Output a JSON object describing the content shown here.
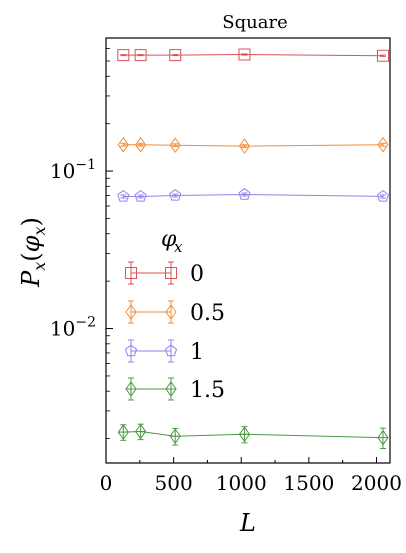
{
  "chart_data": {
    "type": "line",
    "title": "Square",
    "xlabel": "L",
    "ylabel": "P_x(φ_x)",
    "xlim": [
      0,
      2100
    ],
    "ylim": [
      0.0014,
      0.7
    ],
    "yscale": "log",
    "x_ticks": [
      0,
      500,
      1000,
      1500,
      2000
    ],
    "y_ticks": [
      {
        "value": 0.1,
        "base": "10",
        "exp": "−1"
      },
      {
        "value": 0.01,
        "base": "10",
        "exp": "−2"
      }
    ],
    "grid": false,
    "legend_title": "φ_x",
    "legend_position": "center-left",
    "x": [
      128,
      256,
      512,
      1024,
      2048
    ],
    "series": [
      {
        "name": "0",
        "color": "#d9535a",
        "marker": "square",
        "values": [
          0.545,
          0.545,
          0.545,
          0.55,
          0.54
        ],
        "errors": [
          0.004,
          0.004,
          0.004,
          0.005,
          0.005
        ]
      },
      {
        "name": "0.5",
        "color": "#f28e3b",
        "marker": "diamond",
        "values": [
          0.147,
          0.147,
          0.146,
          0.144,
          0.147
        ],
        "errors": [
          0.003,
          0.003,
          0.003,
          0.003,
          0.003
        ]
      },
      {
        "name": "1",
        "color": "#8f85ee",
        "marker": "pentagon",
        "values": [
          0.069,
          0.069,
          0.07,
          0.071,
          0.069
        ],
        "errors": [
          0.0015,
          0.0015,
          0.0015,
          0.0015,
          0.0015
        ]
      },
      {
        "name": "1.5",
        "color": "#4a9a44",
        "marker": "diamond-plus",
        "values": [
          0.0022,
          0.00222,
          0.00207,
          0.00213,
          0.00203
        ],
        "errors": [
          0.00025,
          0.00025,
          0.00025,
          0.00025,
          0.0003
        ]
      }
    ]
  }
}
